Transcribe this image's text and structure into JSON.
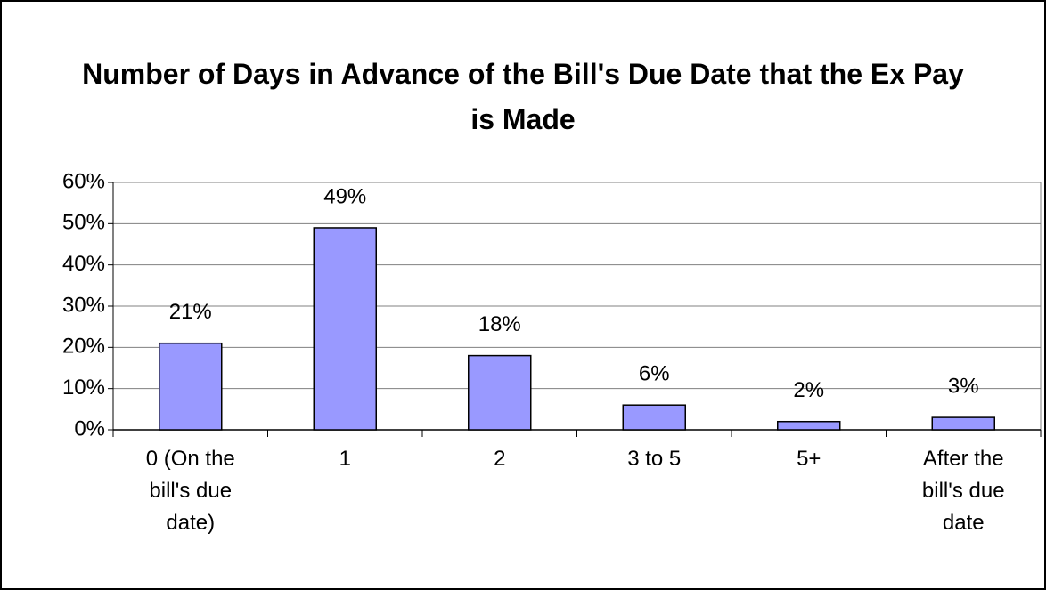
{
  "chart_data": {
    "type": "bar",
    "title": "Number of Days in Advance of the Bill's Due Date that the Ex Pay is Made",
    "categories": [
      "0 (On the bill's due date)",
      "1",
      "2",
      "3 to 5",
      "5+",
      "After the bill's due date"
    ],
    "values": [
      21,
      49,
      18,
      6,
      2,
      3
    ],
    "value_labels": [
      "21%",
      "49%",
      "18%",
      "6%",
      "2%",
      "3%"
    ],
    "color": "#9999ff",
    "ylim": [
      0,
      60
    ],
    "yticks": [
      {
        "value": 0,
        "label": "0%"
      },
      {
        "value": 10,
        "label": "10%"
      },
      {
        "value": 20,
        "label": "20%"
      },
      {
        "value": 30,
        "label": "30%"
      },
      {
        "value": 40,
        "label": "40%"
      },
      {
        "value": 50,
        "label": "50%"
      },
      {
        "value": 60,
        "label": "60%"
      }
    ],
    "grid": true
  }
}
